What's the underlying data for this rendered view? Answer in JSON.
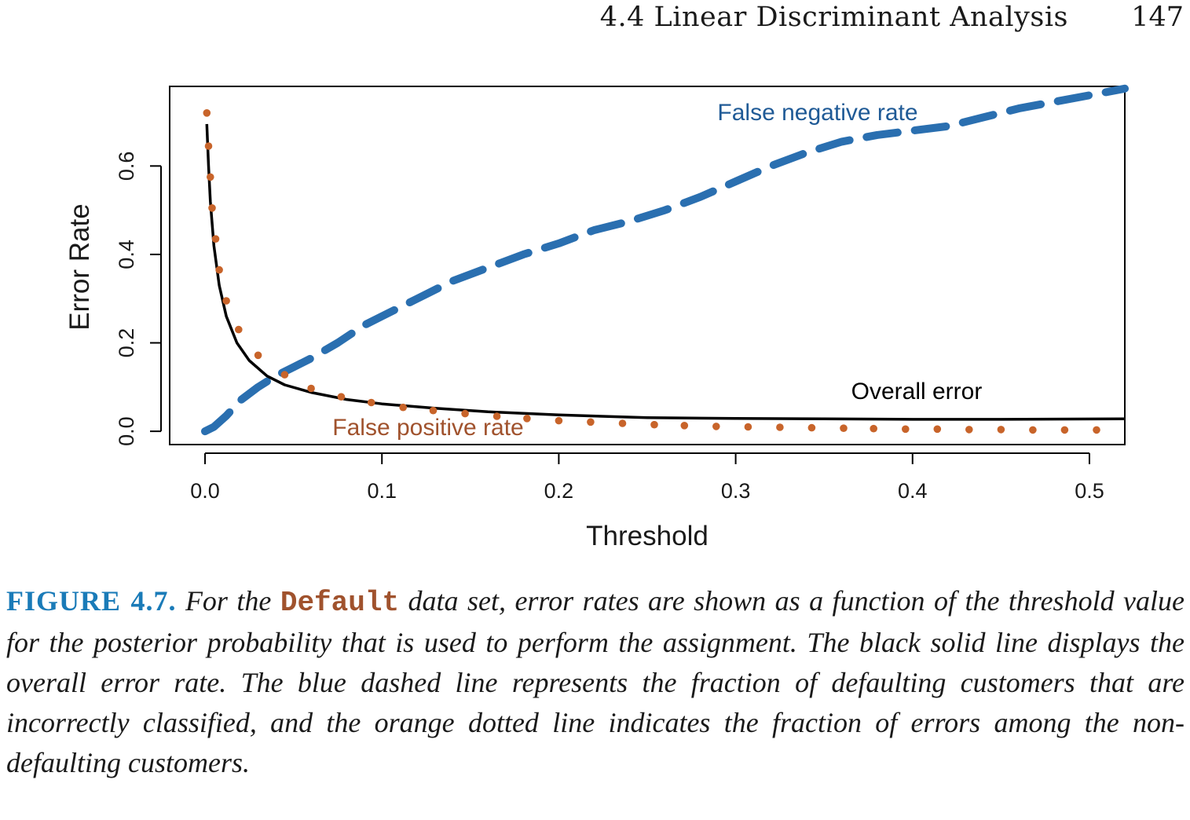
{
  "header": {
    "running_title": "4.4 Linear Discriminant Analysis",
    "page_number": "147"
  },
  "colors": {
    "overall": "#000000",
    "fnr": "#2a6fb0",
    "fpr": "#c8642a",
    "fnr_label": "#1f5a96",
    "fpr_label": "#a0522d",
    "fig_label": "#1a7bb8",
    "code": "#a0522d"
  },
  "chart_data": {
    "type": "line",
    "xlabel": "Threshold",
    "ylabel": "Error Rate",
    "xlim": [
      -0.02,
      0.52
    ],
    "ylim": [
      -0.03,
      0.78
    ],
    "x_ticks": [
      0.0,
      0.1,
      0.2,
      0.3,
      0.4,
      0.5
    ],
    "x_tick_labels": [
      "0.0",
      "0.1",
      "0.2",
      "0.3",
      "0.4",
      "0.5"
    ],
    "y_ticks": [
      0.0,
      0.2,
      0.4,
      0.6
    ],
    "y_tick_labels": [
      "0.0",
      "0.2",
      "0.4",
      "0.6"
    ],
    "grid": false,
    "series": [
      {
        "name": "Overall error",
        "style": "solid",
        "x": [
          0.001,
          0.002,
          0.003,
          0.005,
          0.008,
          0.012,
          0.018,
          0.025,
          0.035,
          0.045,
          0.06,
          0.08,
          0.1,
          0.13,
          0.16,
          0.2,
          0.25,
          0.3,
          0.35,
          0.4,
          0.45,
          0.52
        ],
        "y": [
          0.695,
          0.6,
          0.52,
          0.42,
          0.33,
          0.26,
          0.2,
          0.16,
          0.125,
          0.105,
          0.088,
          0.072,
          0.062,
          0.052,
          0.044,
          0.037,
          0.031,
          0.029,
          0.028,
          0.027,
          0.027,
          0.028
        ]
      },
      {
        "name": "False negative rate",
        "style": "dashed",
        "x": [
          0.0,
          0.005,
          0.012,
          0.02,
          0.03,
          0.04,
          0.05,
          0.06,
          0.075,
          0.09,
          0.1,
          0.12,
          0.14,
          0.16,
          0.18,
          0.2,
          0.22,
          0.24,
          0.26,
          0.28,
          0.3,
          0.32,
          0.34,
          0.36,
          0.38,
          0.4,
          0.42,
          0.44,
          0.46,
          0.48,
          0.5,
          0.52
        ],
        "y": [
          0.0,
          0.01,
          0.035,
          0.07,
          0.1,
          0.125,
          0.145,
          0.165,
          0.2,
          0.24,
          0.26,
          0.3,
          0.34,
          0.37,
          0.4,
          0.425,
          0.455,
          0.475,
          0.5,
          0.53,
          0.565,
          0.6,
          0.63,
          0.655,
          0.67,
          0.68,
          0.69,
          0.71,
          0.73,
          0.745,
          0.76,
          0.775
        ]
      },
      {
        "name": "False positive rate",
        "style": "dotted",
        "x": [
          0.001,
          0.002,
          0.003,
          0.004,
          0.006,
          0.008,
          0.012,
          0.019,
          0.03,
          0.045,
          0.06,
          0.077,
          0.094,
          0.112,
          0.129,
          0.147,
          0.165,
          0.182,
          0.2,
          0.218,
          0.236,
          0.254,
          0.271,
          0.289,
          0.307,
          0.325,
          0.343,
          0.361,
          0.378,
          0.396,
          0.414,
          0.432,
          0.45,
          0.468,
          0.486,
          0.504
        ],
        "y": [
          0.72,
          0.645,
          0.575,
          0.505,
          0.435,
          0.365,
          0.295,
          0.23,
          0.172,
          0.128,
          0.097,
          0.078,
          0.065,
          0.054,
          0.047,
          0.04,
          0.034,
          0.029,
          0.024,
          0.021,
          0.018,
          0.015,
          0.013,
          0.011,
          0.01,
          0.009,
          0.008,
          0.007,
          0.006,
          0.005,
          0.005,
          0.004,
          0.004,
          0.003,
          0.003,
          0.003
        ]
      }
    ],
    "annotations": [
      "False negative rate",
      "Overall error",
      "False positive rate"
    ]
  },
  "caption": {
    "label": "FIGURE 4.7.",
    "text_before": " For the ",
    "code": "Default",
    "text_after": " data set, error rates are shown as a function of the threshold value for the posterior probability that is used to perform the assignment. The black solid line displays the overall error rate. The blue dashed line represents the fraction of defaulting customers that are incorrectly classified, and the orange dotted line indicates the fraction of errors among the non-defaulting customers."
  }
}
